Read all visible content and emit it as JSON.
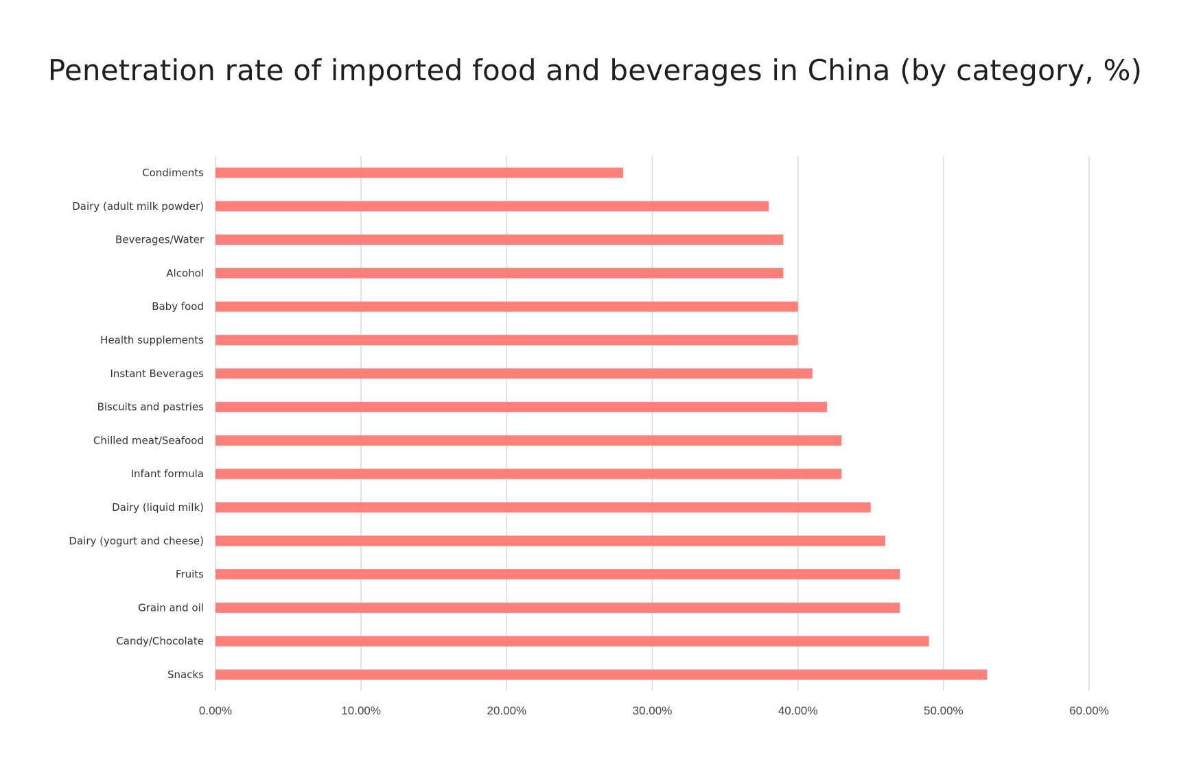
{
  "chart_data": {
    "type": "bar",
    "orientation": "horizontal",
    "title": "Penetration rate of imported food and beverages in China (by category, %)",
    "xlabel": "",
    "ylabel": "",
    "categories": [
      "Condiments",
      "Dairy (adult milk powder)",
      "Beverages/Water",
      "Alcohol",
      "Baby food",
      "Health supplements",
      "Instant Beverages",
      "Biscuits and pastries",
      "Chilled meat/Seafood",
      "Infant formula",
      "Dairy (liquid milk)",
      "Dairy (yogurt and cheese)",
      "Fruits",
      "Grain and oil",
      "Candy/Chocolate",
      "Snacks"
    ],
    "values": [
      28,
      38,
      39,
      39,
      40,
      40,
      41,
      42,
      43,
      43,
      45,
      46,
      47,
      47,
      49,
      53
    ],
    "xlim": [
      0,
      60
    ],
    "ticks": [
      0,
      10,
      20,
      30,
      40,
      50,
      60
    ],
    "tick_labels": [
      "0.00%",
      "10.00%",
      "20.00%",
      "30.00%",
      "40.00%",
      "50.00%",
      "60.00%"
    ],
    "grid": true,
    "legend": "none",
    "bar_color": "#ff7f7a",
    "grid_color": "#d9d9d9"
  }
}
